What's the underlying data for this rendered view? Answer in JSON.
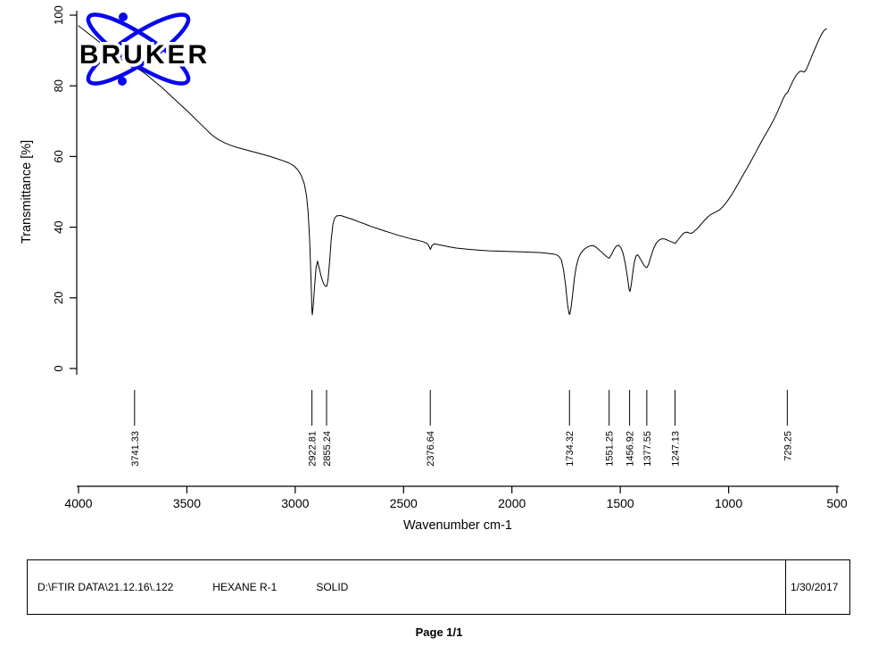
{
  "logo": {
    "brand": "BRUKER",
    "color": "#0808f0"
  },
  "chart_data": {
    "type": "line",
    "title": "",
    "xlabel": "Wavenumber cm-1",
    "ylabel": "Transmittance [%]",
    "xlim": [
      4000,
      500
    ],
    "ylim": [
      0,
      100
    ],
    "x_ticks": [
      4000,
      3500,
      3000,
      2500,
      2000,
      1500,
      1000,
      500
    ],
    "y_ticks": [
      0,
      20,
      40,
      60,
      80,
      100
    ],
    "grid": false,
    "legend": "none",
    "line_color": "#000000",
    "peak_labels": [
      "3741.33",
      "2922.81",
      "2855.24",
      "2376.64",
      "1734.32",
      "1551.25",
      "1456.92",
      "1377.55",
      "1247.13",
      "729.25"
    ],
    "series": [
      {
        "name": "Transmittance",
        "points": [
          [
            4000,
            97
          ],
          [
            3975,
            95.8
          ],
          [
            3950,
            94.6
          ],
          [
            3925,
            93.4
          ],
          [
            3900,
            92.2
          ],
          [
            3875,
            91
          ],
          [
            3850,
            89.8
          ],
          [
            3825,
            88.6
          ],
          [
            3800,
            87.4
          ],
          [
            3780,
            86.4
          ],
          [
            3760,
            85.6
          ],
          [
            3745,
            84.8
          ],
          [
            3741,
            84.6
          ],
          [
            3733,
            85
          ],
          [
            3720,
            84.6
          ],
          [
            3700,
            83.8
          ],
          [
            3675,
            82.6
          ],
          [
            3650,
            81.3
          ],
          [
            3620,
            79.8
          ],
          [
            3590,
            78.1
          ],
          [
            3560,
            76.4
          ],
          [
            3530,
            74.7
          ],
          [
            3500,
            73
          ],
          [
            3470,
            71.2
          ],
          [
            3440,
            69.4
          ],
          [
            3410,
            67.6
          ],
          [
            3390,
            66.4
          ],
          [
            3360,
            65
          ],
          [
            3330,
            64
          ],
          [
            3300,
            63.2
          ],
          [
            3270,
            62.6
          ],
          [
            3240,
            62.1
          ],
          [
            3210,
            61.6
          ],
          [
            3180,
            61.1
          ],
          [
            3150,
            60.6
          ],
          [
            3120,
            60.1
          ],
          [
            3090,
            59.5
          ],
          [
            3060,
            58.9
          ],
          [
            3030,
            58.2
          ],
          [
            3005,
            57.3
          ],
          [
            2988,
            56.2
          ],
          [
            2972,
            54.6
          ],
          [
            2958,
            52.2
          ],
          [
            2948,
            49
          ],
          [
            2940,
            44
          ],
          [
            2933,
            36
          ],
          [
            2927,
            25
          ],
          [
            2923,
            16.5
          ],
          [
            2921,
            15.2
          ],
          [
            2917,
            17.5
          ],
          [
            2911,
            23
          ],
          [
            2904,
            28.5
          ],
          [
            2897,
            30.4
          ],
          [
            2889,
            28.3
          ],
          [
            2879,
            25.8
          ],
          [
            2869,
            24
          ],
          [
            2860,
            23.2
          ],
          [
            2854,
            23.3
          ],
          [
            2848,
            25.5
          ],
          [
            2841,
            30.5
          ],
          [
            2834,
            36.5
          ],
          [
            2826,
            40.8
          ],
          [
            2818,
            42.6
          ],
          [
            2808,
            43.2
          ],
          [
            2790,
            43.3
          ],
          [
            2765,
            42.8
          ],
          [
            2735,
            42.2
          ],
          [
            2705,
            41.5
          ],
          [
            2675,
            40.8
          ],
          [
            2645,
            40.1
          ],
          [
            2615,
            39.5
          ],
          [
            2585,
            38.9
          ],
          [
            2555,
            38.3
          ],
          [
            2525,
            37.7
          ],
          [
            2495,
            37.2
          ],
          [
            2465,
            36.7
          ],
          [
            2435,
            36.3
          ],
          [
            2410,
            35.9
          ],
          [
            2392,
            35.4
          ],
          [
            2383,
            34.7
          ],
          [
            2376,
            33.7
          ],
          [
            2369,
            34.8
          ],
          [
            2359,
            35.3
          ],
          [
            2344,
            35.1
          ],
          [
            2317,
            34.8
          ],
          [
            2287,
            34.4
          ],
          [
            2257,
            34.1
          ],
          [
            2227,
            33.9
          ],
          [
            2197,
            33.7
          ],
          [
            2157,
            33.5
          ],
          [
            2107,
            33.3
          ],
          [
            2057,
            33.2
          ],
          [
            2007,
            33.1
          ],
          [
            1957,
            33
          ],
          [
            1907,
            32.9
          ],
          [
            1867,
            32.8
          ],
          [
            1837,
            32.6
          ],
          [
            1807,
            32.4
          ],
          [
            1787,
            32
          ],
          [
            1772,
            30.8
          ],
          [
            1762,
            28
          ],
          [
            1752,
            23.5
          ],
          [
            1743,
            18
          ],
          [
            1736,
            15.5
          ],
          [
            1733,
            15.3
          ],
          [
            1727,
            17.2
          ],
          [
            1719,
            21.5
          ],
          [
            1711,
            25.8
          ],
          [
            1703,
            28.8
          ],
          [
            1694,
            31
          ],
          [
            1684,
            32.5
          ],
          [
            1669,
            33.6
          ],
          [
            1654,
            34.3
          ],
          [
            1639,
            34.7
          ],
          [
            1624,
            34.8
          ],
          [
            1609,
            34.2
          ],
          [
            1594,
            33.4
          ],
          [
            1579,
            32.5
          ],
          [
            1564,
            31.7
          ],
          [
            1551,
            31.2
          ],
          [
            1540,
            32.3
          ],
          [
            1529,
            33.7
          ],
          [
            1517,
            34.7
          ],
          [
            1507,
            34.9
          ],
          [
            1497,
            34.2
          ],
          [
            1487,
            32.6
          ],
          [
            1477,
            29.8
          ],
          [
            1467,
            25.8
          ],
          [
            1459,
            22.3
          ],
          [
            1455,
            21.8
          ],
          [
            1449,
            23.8
          ],
          [
            1442,
            27.2
          ],
          [
            1435,
            30.1
          ],
          [
            1427,
            31.9
          ],
          [
            1419,
            32.2
          ],
          [
            1409,
            31.2
          ],
          [
            1399,
            30.1
          ],
          [
            1389,
            29.1
          ],
          [
            1381,
            28.6
          ],
          [
            1376,
            28.6
          ],
          [
            1369,
            29.6
          ],
          [
            1358,
            31.8
          ],
          [
            1346,
            34
          ],
          [
            1334,
            35.5
          ],
          [
            1322,
            36.3
          ],
          [
            1310,
            36.7
          ],
          [
            1297,
            36.7
          ],
          [
            1284,
            36.4
          ],
          [
            1270,
            36
          ],
          [
            1258,
            35.7
          ],
          [
            1247,
            35.4
          ],
          [
            1237,
            36.1
          ],
          [
            1226,
            37
          ],
          [
            1214,
            37.9
          ],
          [
            1204,
            38.4
          ],
          [
            1194,
            38.6
          ],
          [
            1184,
            38.4
          ],
          [
            1174,
            38.2
          ],
          [
            1164,
            38.5
          ],
          [
            1152,
            39.2
          ],
          [
            1140,
            39.9
          ],
          [
            1126,
            40.9
          ],
          [
            1112,
            41.9
          ],
          [
            1098,
            42.8
          ],
          [
            1084,
            43.5
          ],
          [
            1070,
            44
          ],
          [
            1056,
            44.4
          ],
          [
            1042,
            44.9
          ],
          [
            1028,
            45.7
          ],
          [
            1014,
            46.7
          ],
          [
            1000,
            47.9
          ],
          [
            986,
            49.2
          ],
          [
            972,
            50.6
          ],
          [
            958,
            52.1
          ],
          [
            944,
            53.6
          ],
          [
            930,
            55.1
          ],
          [
            916,
            56.6
          ],
          [
            902,
            58.1
          ],
          [
            888,
            59.7
          ],
          [
            874,
            61.3
          ],
          [
            860,
            62.9
          ],
          [
            846,
            64.5
          ],
          [
            832,
            66
          ],
          [
            818,
            67.5
          ],
          [
            804,
            69
          ],
          [
            792,
            70.4
          ],
          [
            780,
            71.9
          ],
          [
            769,
            73.4
          ],
          [
            759,
            74.8
          ],
          [
            750,
            76.1
          ],
          [
            742,
            77.1
          ],
          [
            735,
            77.8
          ],
          [
            729,
            78
          ],
          [
            722,
            78.9
          ],
          [
            713,
            80.1
          ],
          [
            703,
            81.4
          ],
          [
            693,
            82.5
          ],
          [
            683,
            83.4
          ],
          [
            673,
            84
          ],
          [
            663,
            84.2
          ],
          [
            653,
            83.9
          ],
          [
            645,
            84.3
          ],
          [
            636,
            85.4
          ],
          [
            626,
            86.9
          ],
          [
            616,
            88.4
          ],
          [
            606,
            89.9
          ],
          [
            596,
            91.3
          ],
          [
            586,
            92.7
          ],
          [
            576,
            94
          ],
          [
            567,
            95
          ],
          [
            559,
            95.7
          ],
          [
            553,
            96
          ],
          [
            548,
            96.1
          ]
        ]
      }
    ]
  },
  "footer": {
    "file_path": "D:\\FTIR DATA\\21.12.16\\.122",
    "sample_name": "HEXANE R-1",
    "sample_form": "SOLID",
    "date": "1/30/2017",
    "page_label": "Page 1/1"
  }
}
